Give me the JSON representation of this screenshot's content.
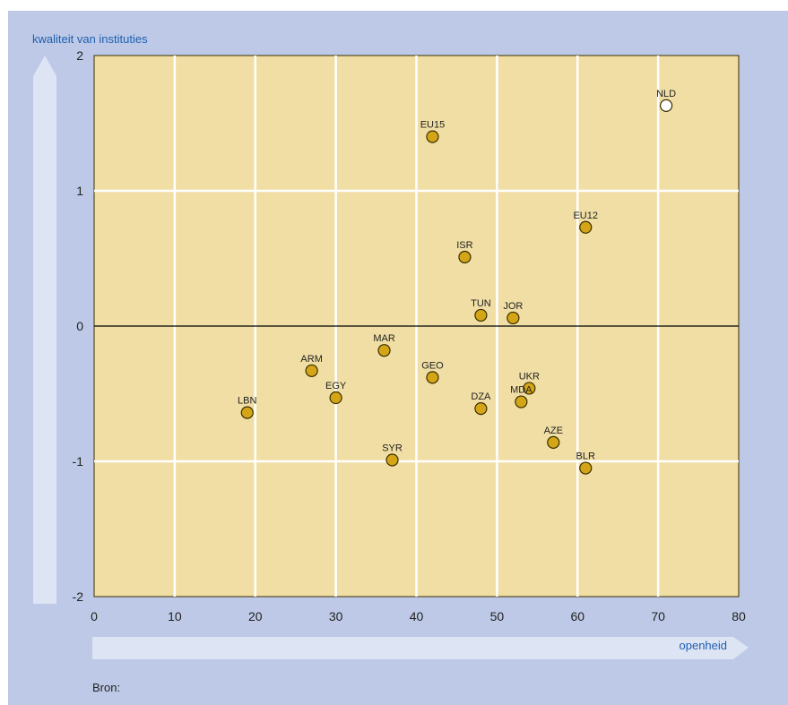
{
  "chart_data": {
    "type": "scatter",
    "title": "",
    "xlabel": "openheid",
    "ylabel": "kwaliteit van instituties",
    "xlim": [
      0,
      80
    ],
    "ylim": [
      -2,
      2
    ],
    "x_ticks": [
      "0",
      "10",
      "20",
      "30",
      "40",
      "50",
      "60",
      "70",
      "80"
    ],
    "y_ticks": [
      "2",
      "1",
      "0",
      "-1",
      "-2"
    ],
    "grid": true,
    "colors": {
      "plot_background": "#f0dea4",
      "panel_background": "#bdc9e6",
      "marker_fill": "#d4a617",
      "marker_highlight_fill": "#ffffff",
      "marker_stroke": "#3a2e00",
      "arrow": "#dde4f3",
      "axis_text_accent": "#1f5fb0"
    },
    "points": [
      {
        "label": "NLD",
        "x": 71,
        "y": 1.63,
        "highlight": true
      },
      {
        "label": "EU15",
        "x": 42,
        "y": 1.4
      },
      {
        "label": "EU12",
        "x": 61,
        "y": 0.73
      },
      {
        "label": "ISR",
        "x": 46,
        "y": 0.51
      },
      {
        "label": "TUN",
        "x": 48,
        "y": 0.08
      },
      {
        "label": "JOR",
        "x": 52,
        "y": 0.06
      },
      {
        "label": "MAR",
        "x": 36,
        "y": -0.18
      },
      {
        "label": "ARM",
        "x": 27,
        "y": -0.33
      },
      {
        "label": "GEO",
        "x": 42,
        "y": -0.38
      },
      {
        "label": "UKR",
        "x": 54,
        "y": -0.46
      },
      {
        "label": "EGY",
        "x": 30,
        "y": -0.53
      },
      {
        "label": "MDA",
        "x": 53,
        "y": -0.56
      },
      {
        "label": "DZA",
        "x": 48,
        "y": -0.61
      },
      {
        "label": "LBN",
        "x": 19,
        "y": -0.64
      },
      {
        "label": "AZE",
        "x": 57,
        "y": -0.86
      },
      {
        "label": "SYR",
        "x": 37,
        "y": -0.99
      },
      {
        "label": "BLR",
        "x": 61,
        "y": -1.05
      }
    ]
  },
  "source_label": "Bron:"
}
